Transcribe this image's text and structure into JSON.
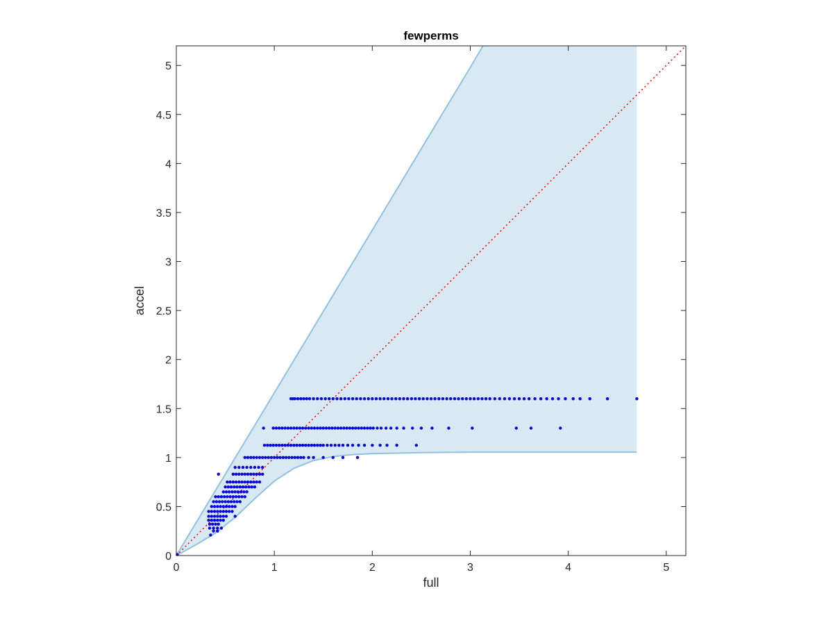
{
  "chart_data": {
    "type": "scatter",
    "title": "fewperms",
    "xlabel": "full",
    "ylabel": "accel",
    "xlim": [
      0,
      5.2
    ],
    "ylim": [
      0,
      5.2
    ],
    "x_ticks": [
      0,
      1,
      2,
      3,
      4,
      5
    ],
    "y_ticks": [
      0,
      0.5,
      1,
      1.5,
      2,
      2.5,
      3,
      3.5,
      4,
      4.5,
      5
    ],
    "x_tick_labels": [
      "0",
      "1",
      "2",
      "3",
      "4",
      "5"
    ],
    "y_tick_labels": [
      "0",
      "0.5",
      "1",
      "1.5",
      "2",
      "2.5",
      "3",
      "3.5",
      "4",
      "4.5",
      "5"
    ],
    "grid": false,
    "colors": {
      "points": "#0000e0",
      "band_fill": "#d9e9f4",
      "band_edge": "#8fc1e0",
      "diagonal": "#ff0000",
      "axes": "#262626"
    },
    "band": {
      "upper": [
        [
          0,
          0
        ],
        [
          0.5,
          0.83
        ],
        [
          1.0,
          1.66
        ],
        [
          1.5,
          2.49
        ],
        [
          2.0,
          3.32
        ],
        [
          2.5,
          4.15
        ],
        [
          3.0,
          4.98
        ],
        [
          3.13,
          5.2
        ],
        [
          4.7,
          5.2
        ]
      ],
      "lower": [
        [
          0,
          0
        ],
        [
          0.2,
          0.11
        ],
        [
          0.4,
          0.23
        ],
        [
          0.6,
          0.39
        ],
        [
          0.8,
          0.58
        ],
        [
          1.0,
          0.76
        ],
        [
          1.2,
          0.89
        ],
        [
          1.4,
          0.97
        ],
        [
          1.6,
          1.01
        ],
        [
          1.8,
          1.03
        ],
        [
          2.0,
          1.04
        ],
        [
          2.5,
          1.05
        ],
        [
          3.0,
          1.055
        ],
        [
          4.7,
          1.055
        ]
      ]
    },
    "diagonal": [
      [
        0,
        0
      ],
      [
        5.2,
        5.2
      ]
    ],
    "series": [
      {
        "rows": [
          {
            "y": 1.6,
            "x": [
              1.17,
              1.19,
              1.21,
              1.24,
              1.27,
              1.3,
              1.33,
              1.36,
              1.4,
              1.44,
              1.48,
              1.52,
              1.56,
              1.6,
              1.64,
              1.68,
              1.72,
              1.76,
              1.8,
              1.84,
              1.88,
              1.92,
              1.96,
              2.0,
              2.04,
              2.08,
              2.12,
              2.16,
              2.2,
              2.24,
              2.28,
              2.32,
              2.36,
              2.4,
              2.44,
              2.48,
              2.52,
              2.56,
              2.6,
              2.64,
              2.68,
              2.72,
              2.76,
              2.8,
              2.84,
              2.88,
              2.92,
              2.96,
              3.0,
              3.04,
              3.08,
              3.12,
              3.16,
              3.2,
              3.25,
              3.3,
              3.35,
              3.4,
              3.45,
              3.5,
              3.55,
              3.6,
              3.66,
              3.72,
              3.78,
              3.84,
              3.9,
              3.97,
              4.05,
              4.12,
              4.22,
              4.4,
              4.7
            ]
          },
          {
            "y": 1.3,
            "x": [
              0.89,
              0.99,
              1.02,
              1.05,
              1.08,
              1.11,
              1.14,
              1.17,
              1.2,
              1.23,
              1.26,
              1.29,
              1.32,
              1.35,
              1.38,
              1.41,
              1.44,
              1.47,
              1.5,
              1.53,
              1.56,
              1.59,
              1.62,
              1.65,
              1.68,
              1.71,
              1.74,
              1.77,
              1.8,
              1.83,
              1.86,
              1.89,
              1.92,
              1.95,
              1.98,
              2.01,
              2.05,
              2.09,
              2.14,
              2.19,
              2.25,
              2.32,
              2.41,
              2.5,
              2.61,
              2.78,
              3.02,
              3.47,
              3.62,
              3.92
            ]
          },
          {
            "y": 1.125,
            "x": [
              0.9,
              0.93,
              0.96,
              0.99,
              1.02,
              1.05,
              1.08,
              1.11,
              1.14,
              1.17,
              1.2,
              1.23,
              1.26,
              1.29,
              1.32,
              1.35,
              1.38,
              1.41,
              1.44,
              1.47,
              1.5,
              1.54,
              1.58,
              1.62,
              1.66,
              1.7,
              1.75,
              1.8,
              1.86,
              1.92,
              2.0,
              2.08,
              2.15,
              2.25,
              2.45
            ]
          },
          {
            "y": 1.0,
            "x": [
              0.7,
              0.73,
              0.76,
              0.79,
              0.82,
              0.85,
              0.88,
              0.91,
              0.94,
              0.97,
              1.0,
              1.03,
              1.06,
              1.09,
              1.12,
              1.15,
              1.18,
              1.21,
              1.24,
              1.27,
              1.3,
              1.35,
              1.4,
              1.5,
              1.6,
              1.7,
              1.85
            ]
          },
          {
            "y": 0.9,
            "x": [
              0.6,
              0.64,
              0.68,
              0.72,
              0.76,
              0.8,
              0.84,
              0.88
            ]
          },
          {
            "y": 0.83,
            "x": [
              0.43,
              0.58,
              0.61,
              0.64,
              0.67,
              0.7,
              0.73,
              0.76,
              0.79,
              0.82,
              0.85,
              0.88
            ]
          },
          {
            "y": 0.75,
            "x": [
              0.52,
              0.55,
              0.58,
              0.61,
              0.64,
              0.67,
              0.7,
              0.73,
              0.76,
              0.79,
              0.82,
              0.85
            ]
          },
          {
            "y": 0.7,
            "x": [
              0.5,
              0.53,
              0.56,
              0.59,
              0.62,
              0.65,
              0.68,
              0.71,
              0.74,
              0.77,
              0.8
            ]
          },
          {
            "y": 0.65,
            "x": [
              0.48,
              0.51,
              0.54,
              0.57,
              0.6,
              0.63,
              0.66,
              0.69,
              0.72
            ]
          },
          {
            "y": 0.6,
            "x": [
              0.4,
              0.43,
              0.46,
              0.49,
              0.52,
              0.55,
              0.58,
              0.61,
              0.64,
              0.67,
              0.7
            ]
          },
          {
            "y": 0.55,
            "x": [
              0.38,
              0.41,
              0.44,
              0.47,
              0.5,
              0.53,
              0.56,
              0.59,
              0.62,
              0.65
            ]
          },
          {
            "y": 0.5,
            "x": [
              0.36,
              0.39,
              0.42,
              0.45,
              0.48,
              0.51,
              0.54,
              0.57,
              0.6
            ]
          },
          {
            "y": 0.45,
            "x": [
              0.33,
              0.36,
              0.39,
              0.42,
              0.45,
              0.48,
              0.51,
              0.54,
              0.57
            ]
          },
          {
            "y": 0.4,
            "x": [
              0.33,
              0.36,
              0.39,
              0.42,
              0.45,
              0.48,
              0.51,
              0.6
            ]
          },
          {
            "y": 0.36,
            "x": [
              0.33,
              0.36,
              0.39,
              0.42,
              0.45,
              0.48
            ]
          },
          {
            "y": 0.32,
            "x": [
              0.34,
              0.37,
              0.4,
              0.43
            ]
          },
          {
            "y": 0.28,
            "x": [
              0.34,
              0.38,
              0.42,
              0.46
            ]
          },
          {
            "y": 0.25,
            "x": [
              0.38,
              0.42
            ]
          },
          {
            "y": 0.21,
            "x": [
              0.35
            ]
          },
          {
            "y": 0.01,
            "x": [
              0.01
            ]
          }
        ]
      }
    ]
  }
}
